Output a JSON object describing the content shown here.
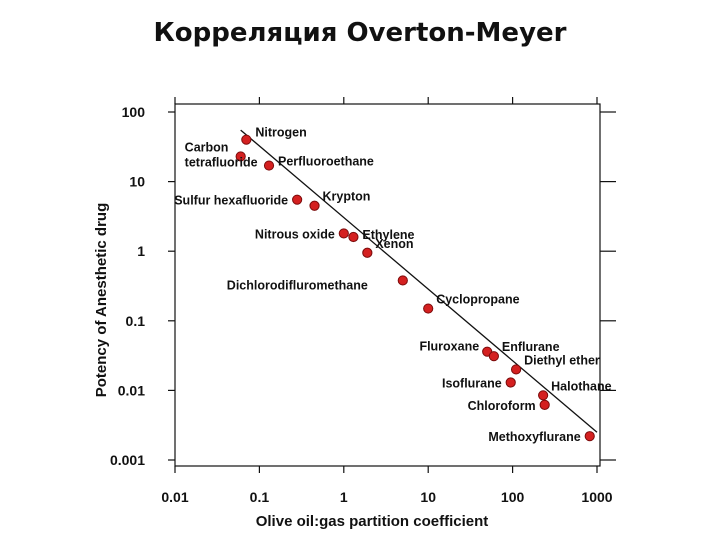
{
  "page": {
    "title": "Корреляция Overton-Meyer"
  },
  "chart_data": {
    "type": "scatter",
    "x_scale": "log",
    "y_scale": "log",
    "xlim": [
      0.01,
      1000
    ],
    "ylim": [
      0.001,
      100
    ],
    "xlabel": "Olive oil:gas partition coefficient",
    "ylabel": "Potency of Anesthetic drug",
    "x_ticks": [
      {
        "value": 0.01,
        "label": "0.01"
      },
      {
        "value": 0.1,
        "label": "0.1"
      },
      {
        "value": 1,
        "label": "1"
      },
      {
        "value": 10,
        "label": "10"
      },
      {
        "value": 100,
        "label": "100"
      },
      {
        "value": 1000,
        "label": "1000"
      }
    ],
    "y_ticks": [
      {
        "value": 100,
        "label": "100"
      },
      {
        "value": 10,
        "label": "10"
      },
      {
        "value": 1,
        "label": "1"
      },
      {
        "value": 0.1,
        "label": "0.1"
      },
      {
        "value": 0.01,
        "label": "0.01"
      },
      {
        "value": 0.001,
        "label": "0.001"
      }
    ],
    "grid": false,
    "marker_color": "#d42020",
    "line_color": "#111111",
    "trend_line": {
      "x": [
        0.06,
        1000
      ],
      "y": [
        55,
        0.0025
      ]
    },
    "points": [
      {
        "name": "Nitrogen",
        "x": 0.07,
        "y": 40,
        "label": [
          "Nitrogen"
        ],
        "anchor": "right"
      },
      {
        "name": "Carbon tetrafluoride",
        "x": 0.06,
        "y": 23,
        "label": [
          "Carbon",
          "tetrafluoride"
        ],
        "anchor": "below-left"
      },
      {
        "name": "Perfluoroethane",
        "x": 0.13,
        "y": 17,
        "label": [
          "Perfluoroethane"
        ],
        "anchor": "right"
      },
      {
        "name": "Sulfur hexafluoride",
        "x": 0.28,
        "y": 5.5,
        "label": [
          "Sulfur hexafluoride"
        ],
        "anchor": "left"
      },
      {
        "name": "Krypton",
        "x": 0.45,
        "y": 4.5,
        "label": [
          "Krypton"
        ],
        "anchor": "right-up"
      },
      {
        "name": "Nitrous oxide",
        "x": 1.0,
        "y": 1.8,
        "label": [
          "Nitrous oxide"
        ],
        "anchor": "left"
      },
      {
        "name": "Ethylene",
        "x": 1.3,
        "y": 1.6,
        "label": [
          "Ethylene"
        ],
        "anchor": "right"
      },
      {
        "name": "Xenon",
        "x": 1.9,
        "y": 0.95,
        "label": [
          "Xenon"
        ],
        "anchor": "right-up"
      },
      {
        "name": "Dichlorodifluromethane",
        "x": 5.0,
        "y": 0.38,
        "label": [
          "Dichlorodifluromethane"
        ],
        "anchor": "below-left"
      },
      {
        "name": "Cyclopropane",
        "x": 10.0,
        "y": 0.15,
        "label": [
          "Cyclopropane"
        ],
        "anchor": "right-up"
      },
      {
        "name": "Fluroxane",
        "x": 50,
        "y": 0.036,
        "label": [
          "Fluroxane"
        ],
        "anchor": "left-up"
      },
      {
        "name": "Enflurane",
        "x": 60,
        "y": 0.031,
        "label": [
          "Enflurane"
        ],
        "anchor": "right-up"
      },
      {
        "name": "Diethyl ether",
        "x": 110,
        "y": 0.02,
        "label": [
          "Diethyl ether"
        ],
        "anchor": "right-up"
      },
      {
        "name": "Isoflurane",
        "x": 95,
        "y": 0.013,
        "label": [
          "Isoflurane"
        ],
        "anchor": "left"
      },
      {
        "name": "Halothane",
        "x": 230,
        "y": 0.0085,
        "label": [
          "Halothane"
        ],
        "anchor": "right-up"
      },
      {
        "name": "Chloroform",
        "x": 240,
        "y": 0.0062,
        "label": [
          "Chloroform"
        ],
        "anchor": "left"
      },
      {
        "name": "Methoxyflurane",
        "x": 820,
        "y": 0.0022,
        "label": [
          "Methoxyflurane"
        ],
        "anchor": "left"
      }
    ]
  }
}
